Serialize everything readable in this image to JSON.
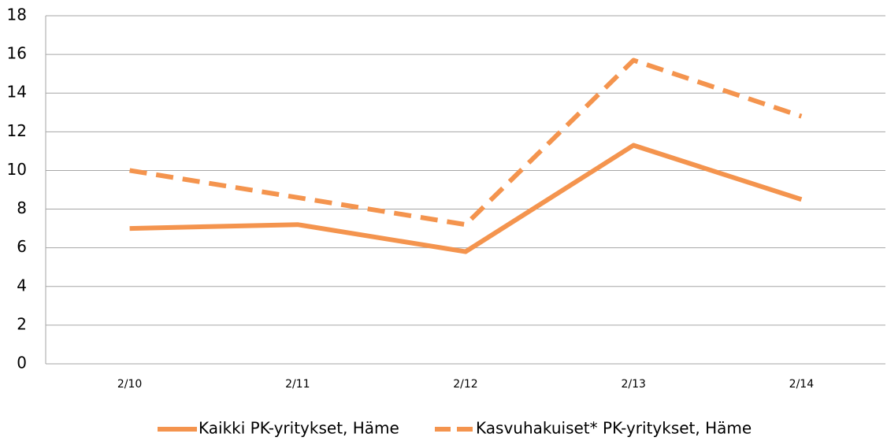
{
  "chart_data": {
    "type": "line",
    "categories": [
      "2/10",
      "2/11",
      "2/12",
      "2/13",
      "2/14"
    ],
    "series": [
      {
        "name": "Kaikki PK-yritykset, Häme",
        "color": "#f4944e",
        "line_style": "solid",
        "values": [
          7.0,
          7.2,
          5.8,
          11.3,
          8.5
        ]
      },
      {
        "name": "Kasvuhakuiset* PK-yritykset, Häme",
        "color": "#f4944e",
        "line_style": "dashed",
        "values": [
          10.0,
          8.6,
          7.2,
          15.7,
          12.8
        ]
      }
    ],
    "ylim": [
      0,
      18
    ],
    "yticks": [
      0,
      2,
      4,
      6,
      8,
      10,
      12,
      14,
      16,
      18
    ],
    "grid": true,
    "legend": "bottom"
  }
}
